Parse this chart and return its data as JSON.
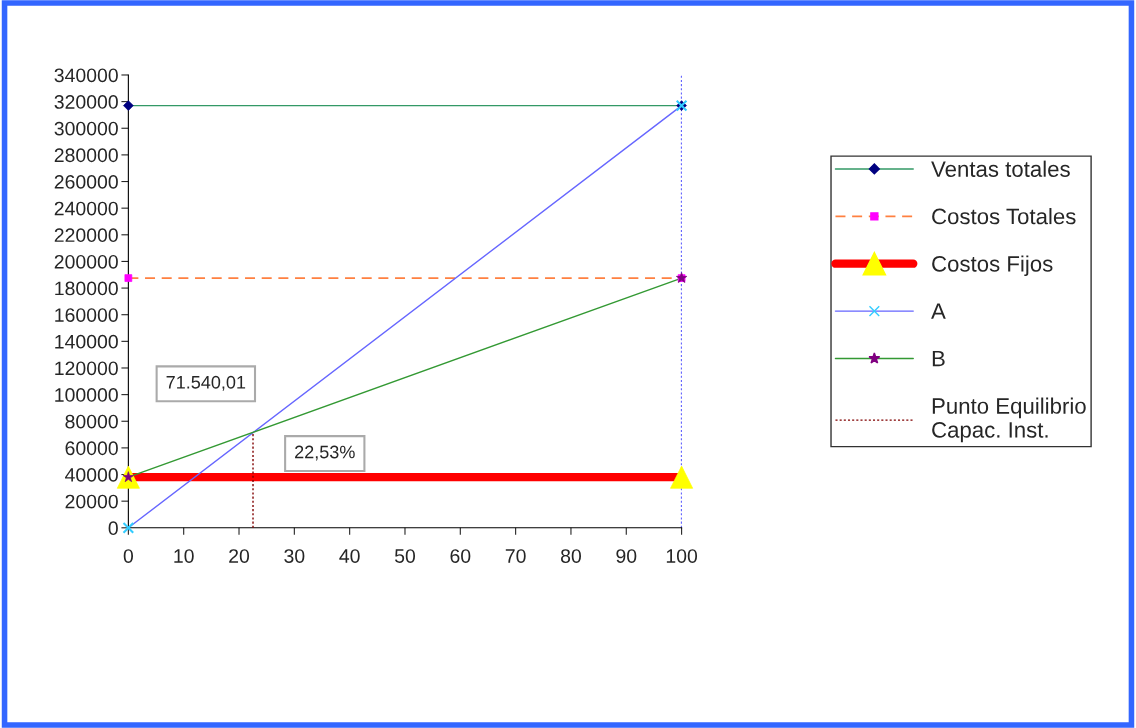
{
  "chart_data": {
    "type": "line",
    "xlim": [
      0,
      100
    ],
    "xticks": [
      0,
      10,
      20,
      30,
      40,
      50,
      60,
      70,
      80,
      90,
      100
    ],
    "ylim": [
      0,
      340000
    ],
    "yticks": [
      0,
      20000,
      40000,
      60000,
      80000,
      100000,
      120000,
      140000,
      160000,
      180000,
      200000,
      220000,
      240000,
      260000,
      280000,
      300000,
      320000,
      340000
    ],
    "grid": false,
    "legend": "right",
    "series": [
      {
        "name": "Ventas totales",
        "color": "#339966",
        "colors": [
          "#000080",
          "#000080"
        ],
        "marker": "diamond",
        "line_style": "solid",
        "x": [
          0,
          100
        ],
        "values": [
          317000,
          317000
        ]
      },
      {
        "name": "Costos Totales",
        "color": "#ff8040",
        "colors": [
          "#ff00ff",
          "#ff00ff"
        ],
        "marker": "square",
        "line_style": "dashed",
        "x": [
          0,
          100
        ],
        "values": [
          187500,
          187500
        ]
      },
      {
        "name": "Costos Fijos",
        "color": "#ff0000",
        "colors": [
          "#ffff00",
          "#ffff00"
        ],
        "marker": "triangle",
        "line_style": "solid",
        "x": [
          0,
          100
        ],
        "values": [
          38000,
          38000
        ]
      },
      {
        "name": "A",
        "color": "#6666ff",
        "colors": [
          "#33ccff",
          "#33ccff"
        ],
        "marker": "cross",
        "line_style": "solid",
        "x": [
          0,
          100
        ],
        "values": [
          0,
          317000
        ]
      },
      {
        "name": "B",
        "color": "#339933",
        "colors": [
          "#800080",
          "#800080"
        ],
        "marker": "star",
        "line_style": "solid",
        "x": [
          0,
          100
        ],
        "values": [
          38000,
          187500
        ]
      },
      {
        "name": "Punto Equilibrio\nCapac. Inst.",
        "color": "#800000",
        "marker": "none",
        "line_style": "dotted",
        "x": [
          22.53,
          22.53
        ],
        "values": [
          0,
          71540
        ]
      }
    ],
    "ref_lines": [
      {
        "axis": "x",
        "value": 100,
        "color": "#0000ff",
        "line_style": "dotted"
      }
    ],
    "annotations": [
      "71.540,01",
      "22,53%"
    ]
  }
}
